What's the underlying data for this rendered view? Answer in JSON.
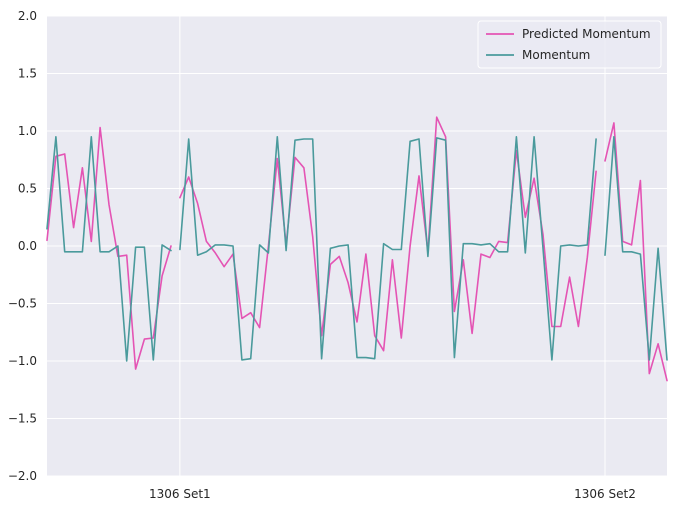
{
  "chart_data": {
    "type": "line",
    "title": "",
    "xlabel": "",
    "ylabel": "",
    "ylim": [
      -2.0,
      2.0
    ],
    "yticks": [
      -2.0,
      -1.5,
      -1.0,
      -0.5,
      0.0,
      0.5,
      1.0,
      1.5,
      2.0
    ],
    "ytick_labels": [
      "−2.0",
      "−1.5",
      "−1.0",
      "−0.5",
      "0.0",
      "0.5",
      "1.0",
      "1.5",
      "2.0"
    ],
    "xlim": [
      0,
      70
    ],
    "xticks": [
      15,
      63
    ],
    "xtick_labels": [
      "1306 Set1",
      "1306 Set2"
    ],
    "grid": true,
    "legend_position": "top-right",
    "colors": {
      "background": "#eaeaf2",
      "grid": "#ffffff",
      "predicted": "#e454b4",
      "momentum": "#4a9a9c"
    },
    "series": [
      {
        "name": "Predicted Momentum",
        "color": "#e454b4",
        "segments": [
          {
            "x": [
              0,
              1,
              2,
              3,
              4,
              5,
              6,
              7,
              8,
              9,
              10,
              11,
              12,
              13,
              14
            ],
            "y": [
              0.05,
              0.78,
              0.8,
              0.16,
              0.68,
              0.04,
              1.03,
              0.36,
              -0.09,
              -0.08,
              -1.07,
              -0.81,
              -0.8,
              -0.26,
              0.0
            ]
          },
          {
            "x": [
              15,
              16,
              17,
              18,
              19,
              20,
              21,
              22,
              23,
              24,
              25,
              26,
              27,
              28,
              29,
              30,
              31,
              32,
              33,
              34,
              35,
              36,
              37,
              38,
              39,
              40,
              41,
              42,
              43,
              44,
              45,
              46,
              47,
              48,
              49,
              50,
              51,
              52,
              53,
              54,
              55,
              56,
              57,
              58,
              59,
              60,
              61,
              62
            ],
            "y": [
              0.42,
              0.6,
              0.37,
              0.04,
              -0.06,
              -0.18,
              -0.07,
              -0.63,
              -0.58,
              -0.71,
              0.0,
              0.76,
              0.01,
              0.77,
              0.68,
              0.08,
              -0.78,
              -0.16,
              -0.09,
              -0.32,
              -0.66,
              -0.07,
              -0.78,
              -0.91,
              -0.12,
              -0.8,
              0.0,
              0.61,
              -0.05,
              1.12,
              0.95,
              -0.57,
              -0.12,
              -0.76,
              -0.07,
              -0.1,
              0.04,
              0.03,
              0.83,
              0.25,
              0.59,
              0.1,
              -0.7,
              -0.7,
              -0.27,
              -0.7,
              -0.1,
              0.65
            ]
          },
          {
            "x": [
              63,
              64,
              65,
              66,
              67,
              68,
              69,
              70
            ],
            "y": [
              0.74,
              1.07,
              0.04,
              0.01,
              0.57,
              -1.11,
              -0.85,
              -1.17
            ]
          }
        ]
      },
      {
        "name": "Momentum",
        "color": "#4a9a9c",
        "segments": [
          {
            "x": [
              0,
              1,
              2,
              3,
              4,
              5,
              6,
              7,
              8,
              9,
              10,
              11,
              12,
              13,
              14
            ],
            "y": [
              0.15,
              0.95,
              -0.05,
              -0.05,
              -0.05,
              0.95,
              -0.05,
              -0.05,
              0.0,
              -1.0,
              -0.01,
              -0.01,
              -0.99,
              0.01,
              -0.04
            ]
          },
          {
            "x": [
              15,
              16,
              17,
              18,
              19,
              20,
              21,
              22,
              23,
              24,
              25,
              26,
              27,
              28,
              29,
              30,
              31,
              32,
              33,
              34,
              35,
              36,
              37,
              38,
              39,
              40,
              41,
              42,
              43,
              44,
              45,
              46,
              47,
              48,
              49,
              50,
              51,
              52,
              53,
              54,
              55,
              56,
              57,
              58,
              59,
              60,
              61,
              62
            ],
            "y": [
              -0.03,
              0.93,
              -0.08,
              -0.05,
              0.01,
              0.01,
              0.0,
              -0.99,
              -0.98,
              0.01,
              -0.06,
              0.95,
              -0.04,
              0.92,
              0.93,
              0.93,
              -0.98,
              -0.02,
              0.0,
              0.01,
              -0.97,
              -0.97,
              -0.98,
              0.02,
              -0.03,
              -0.03,
              0.91,
              0.93,
              -0.09,
              0.94,
              0.92,
              -0.97,
              0.02,
              0.02,
              0.01,
              0.02,
              -0.05,
              -0.05,
              0.95,
              -0.06,
              0.95,
              -0.02,
              -0.99,
              0.0,
              0.01,
              0.0,
              0.01,
              0.93
            ]
          },
          {
            "x": [
              63,
              64,
              65,
              66,
              67,
              68,
              69,
              70
            ],
            "y": [
              -0.08,
              0.95,
              -0.05,
              -0.05,
              -0.07,
              -0.99,
              -0.02,
              -0.99
            ]
          }
        ]
      }
    ]
  }
}
